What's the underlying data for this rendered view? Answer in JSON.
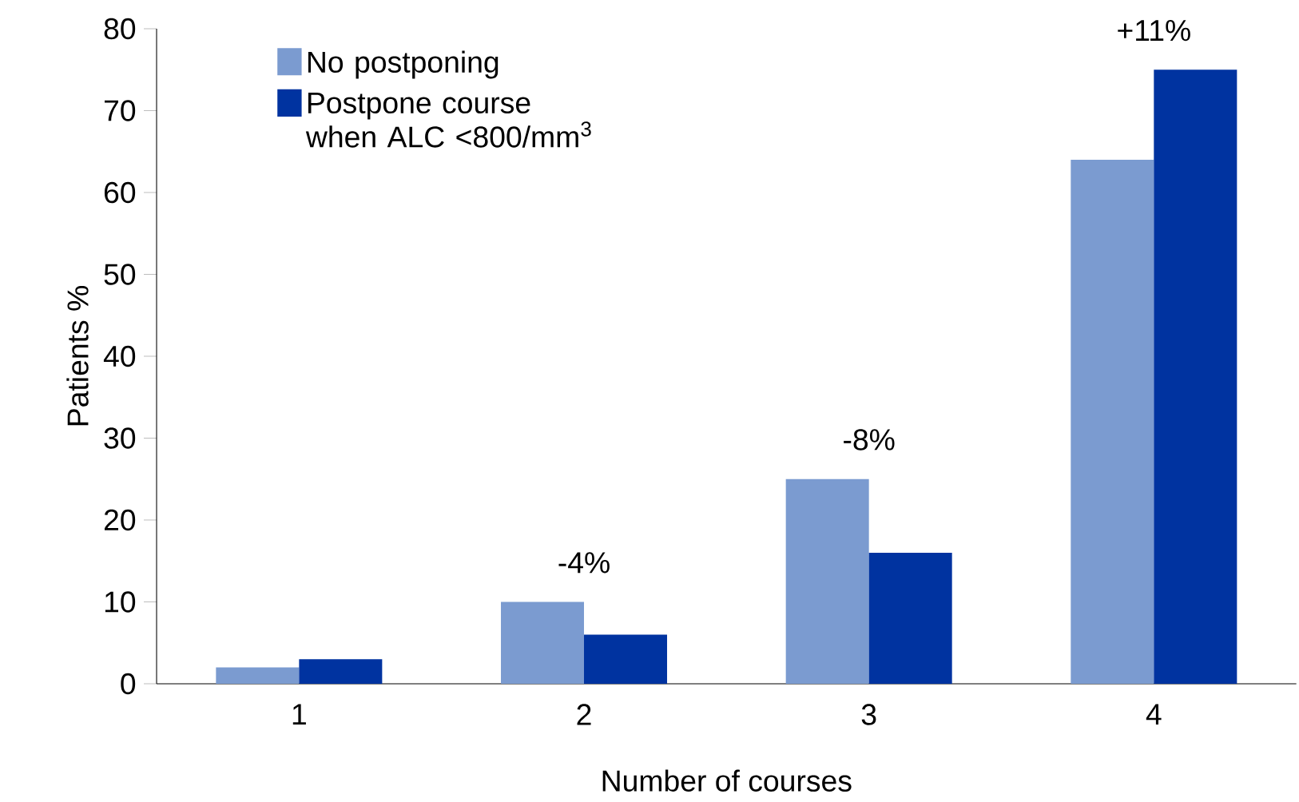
{
  "chart_data": {
    "type": "bar",
    "xlabel": "Number of courses",
    "ylabel": "Patients %",
    "categories": [
      "1",
      "2",
      "3",
      "4"
    ],
    "series": [
      {
        "name": "No postponing",
        "color": "#7b9bd0",
        "values": [
          2,
          10,
          25,
          64
        ]
      },
      {
        "name": "Postpone course when ALC <800/mm$^{3}$",
        "color": "#0033a0",
        "values": [
          3,
          6,
          16,
          75
        ]
      }
    ],
    "ylim": [
      0,
      80
    ],
    "yticks": [
      0,
      10,
      20,
      30,
      40,
      50,
      60,
      70,
      80
    ],
    "annotations": [
      {
        "text": "-4%",
        "x": "2",
        "y": 10
      },
      {
        "text": "-8%",
        "x": "3",
        "y": 25
      },
      {
        "text": "+11%",
        "x": "4",
        "y": 75
      }
    ],
    "legend": "top left",
    "grid": false
  }
}
